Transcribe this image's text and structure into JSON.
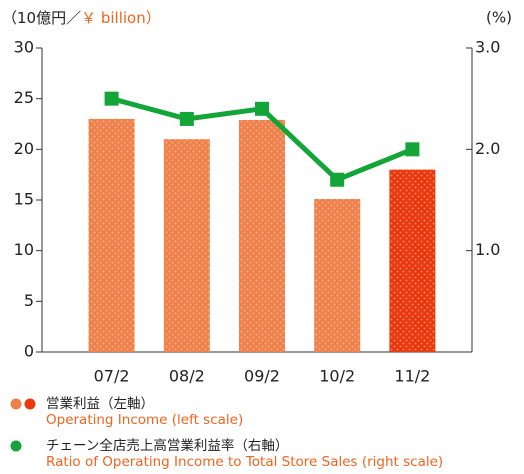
{
  "chart_data": {
    "type": "bar",
    "unit_label": "（10億円／",
    "unit_label_en": "￥ billion）",
    "y2_unit_label": "(%)",
    "categories": [
      "07/2",
      "08/2",
      "09/2",
      "10/2",
      "11/2"
    ],
    "series": [
      {
        "name": "Operating Income (left scale)",
        "legend_ja": "営業利益（左軸）",
        "color": "#f0804a",
        "colors": [
          "#f0804a",
          "#f0804a",
          "#f0804a",
          "#f0804a",
          "#e8380d"
        ],
        "values": [
          23,
          21,
          22.9,
          15.1,
          18
        ]
      },
      {
        "name": "Ratio of Operating Income to Total Store Sales (right scale)",
        "legend_ja": "チェーン全店売上高営業利益率（右軸）",
        "color": "#13a538",
        "type": "line",
        "axis": "y2",
        "values": [
          2.5,
          2.3,
          2.4,
          1.7,
          2.0
        ]
      }
    ],
    "ylim": [
      0,
      30
    ],
    "yticks": [
      0,
      5,
      10,
      15,
      20,
      25,
      30
    ],
    "y2lim": [
      0,
      3
    ],
    "y2ticks": [
      {
        "value": 1,
        "label": "1.0"
      },
      {
        "value": 2,
        "label": "2.0"
      },
      {
        "value": 3,
        "label": "3.0"
      }
    ]
  }
}
